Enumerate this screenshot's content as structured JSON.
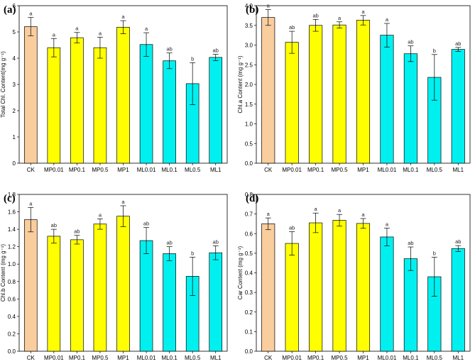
{
  "colors": {
    "control": "#FACD9D",
    "mp": "#FFFF00",
    "ml": "#00F0F0",
    "stroke": "#000000"
  },
  "chart_data": [
    {
      "panel": "(a)",
      "type": "bar",
      "ylabel": "Total Chl. Content(mg g⁻¹)",
      "ylim": [
        0,
        6
      ],
      "yticks": [
        "0",
        "1",
        "2",
        "3",
        "4",
        "5",
        "6"
      ],
      "categories": [
        "CK",
        "MP0.01",
        "MP0.1",
        "MP0.5",
        "MP1",
        "ML0.01",
        "ML0.1",
        "ML0.5",
        "ML1"
      ],
      "values": [
        5.2,
        4.4,
        4.78,
        4.4,
        5.18,
        4.52,
        3.9,
        3.03,
        4.03
      ],
      "errors": [
        0.35,
        0.35,
        0.2,
        0.4,
        0.25,
        0.45,
        0.3,
        0.8,
        0.12
      ],
      "significance": [
        "a",
        "a",
        "a",
        "a",
        "a",
        "a",
        "ab",
        "b",
        "ab"
      ],
      "groups": [
        "control",
        "mp",
        "mp",
        "mp",
        "mp",
        "ml",
        "ml",
        "ml",
        "ml"
      ]
    },
    {
      "panel": "(b)",
      "type": "bar",
      "ylabel": "Chl.a Content (mg g⁻¹)",
      "ylim": [
        0,
        4
      ],
      "yticks": [
        "0.0",
        "0.5",
        "1.0",
        "1.5",
        "2.0",
        "2.5",
        "3.0",
        "3.5",
        "4.0"
      ],
      "categories": [
        "CK",
        "MP0.01",
        "MP0.1",
        "MP0.5",
        "MP1",
        "ML0.01",
        "ML0.1",
        "ML0.5",
        "ML1"
      ],
      "values": [
        3.7,
        3.07,
        3.5,
        3.51,
        3.63,
        3.25,
        2.78,
        2.18,
        2.89
      ],
      "errors": [
        0.2,
        0.28,
        0.15,
        0.08,
        0.12,
        0.3,
        0.2,
        0.58,
        0.05
      ],
      "significance": [
        "a",
        "ab",
        "ab",
        "a",
        "a",
        "a",
        "ab",
        "b",
        "ab"
      ],
      "groups": [
        "control",
        "mp",
        "mp",
        "mp",
        "mp",
        "ml",
        "ml",
        "ml",
        "ml"
      ]
    },
    {
      "panel": "(c)",
      "type": "bar",
      "ylabel": "Chl.b Content (mg g⁻¹)",
      "ylim": [
        0,
        1.8
      ],
      "yticks": [
        "0.0",
        "0.2",
        "0.4",
        "0.6",
        "0.8",
        "1.0",
        "1.2",
        "1.4",
        "1.6",
        "1.8"
      ],
      "categories": [
        "CK",
        "MP0.01",
        "MP0.1",
        "MP0.5",
        "MP1",
        "ML0.01",
        "ML0.1",
        "ML0.5",
        "ML1"
      ],
      "values": [
        1.51,
        1.32,
        1.28,
        1.46,
        1.55,
        1.27,
        1.12,
        0.86,
        1.13
      ],
      "errors": [
        0.14,
        0.08,
        0.05,
        0.06,
        0.12,
        0.15,
        0.08,
        0.22,
        0.08
      ],
      "significance": [
        "a",
        "ab",
        "ab",
        "a",
        "a",
        "ab",
        "ab",
        "b",
        "ab"
      ],
      "groups": [
        "control",
        "mp",
        "mp",
        "mp",
        "mp",
        "ml",
        "ml",
        "ml",
        "ml"
      ]
    },
    {
      "panel": "(d)",
      "type": "bar",
      "ylabel": "Car Content (mg g⁻¹)",
      "ylim": [
        0,
        0.8
      ],
      "yticks": [
        "0.0",
        "0.1",
        "0.2",
        "0.3",
        "0.4",
        "0.5",
        "0.6",
        "0.7",
        "0.8"
      ],
      "categories": [
        "CK",
        "MP0.01",
        "MP0.1",
        "MP0.5",
        "MP1",
        "ML0.01",
        "ML0.1",
        "ML0.5",
        "ML1"
      ],
      "values": [
        0.65,
        0.55,
        0.655,
        0.668,
        0.652,
        0.583,
        0.472,
        0.38,
        0.524
      ],
      "errors": [
        0.03,
        0.06,
        0.05,
        0.03,
        0.025,
        0.045,
        0.06,
        0.1,
        0.015
      ],
      "significance": [
        "a",
        "ab",
        "a",
        "a",
        "a",
        "a",
        "ab",
        "b",
        "ab"
      ],
      "groups": [
        "control",
        "mp",
        "mp",
        "mp",
        "mp",
        "ml",
        "ml",
        "ml",
        "ml"
      ]
    }
  ]
}
